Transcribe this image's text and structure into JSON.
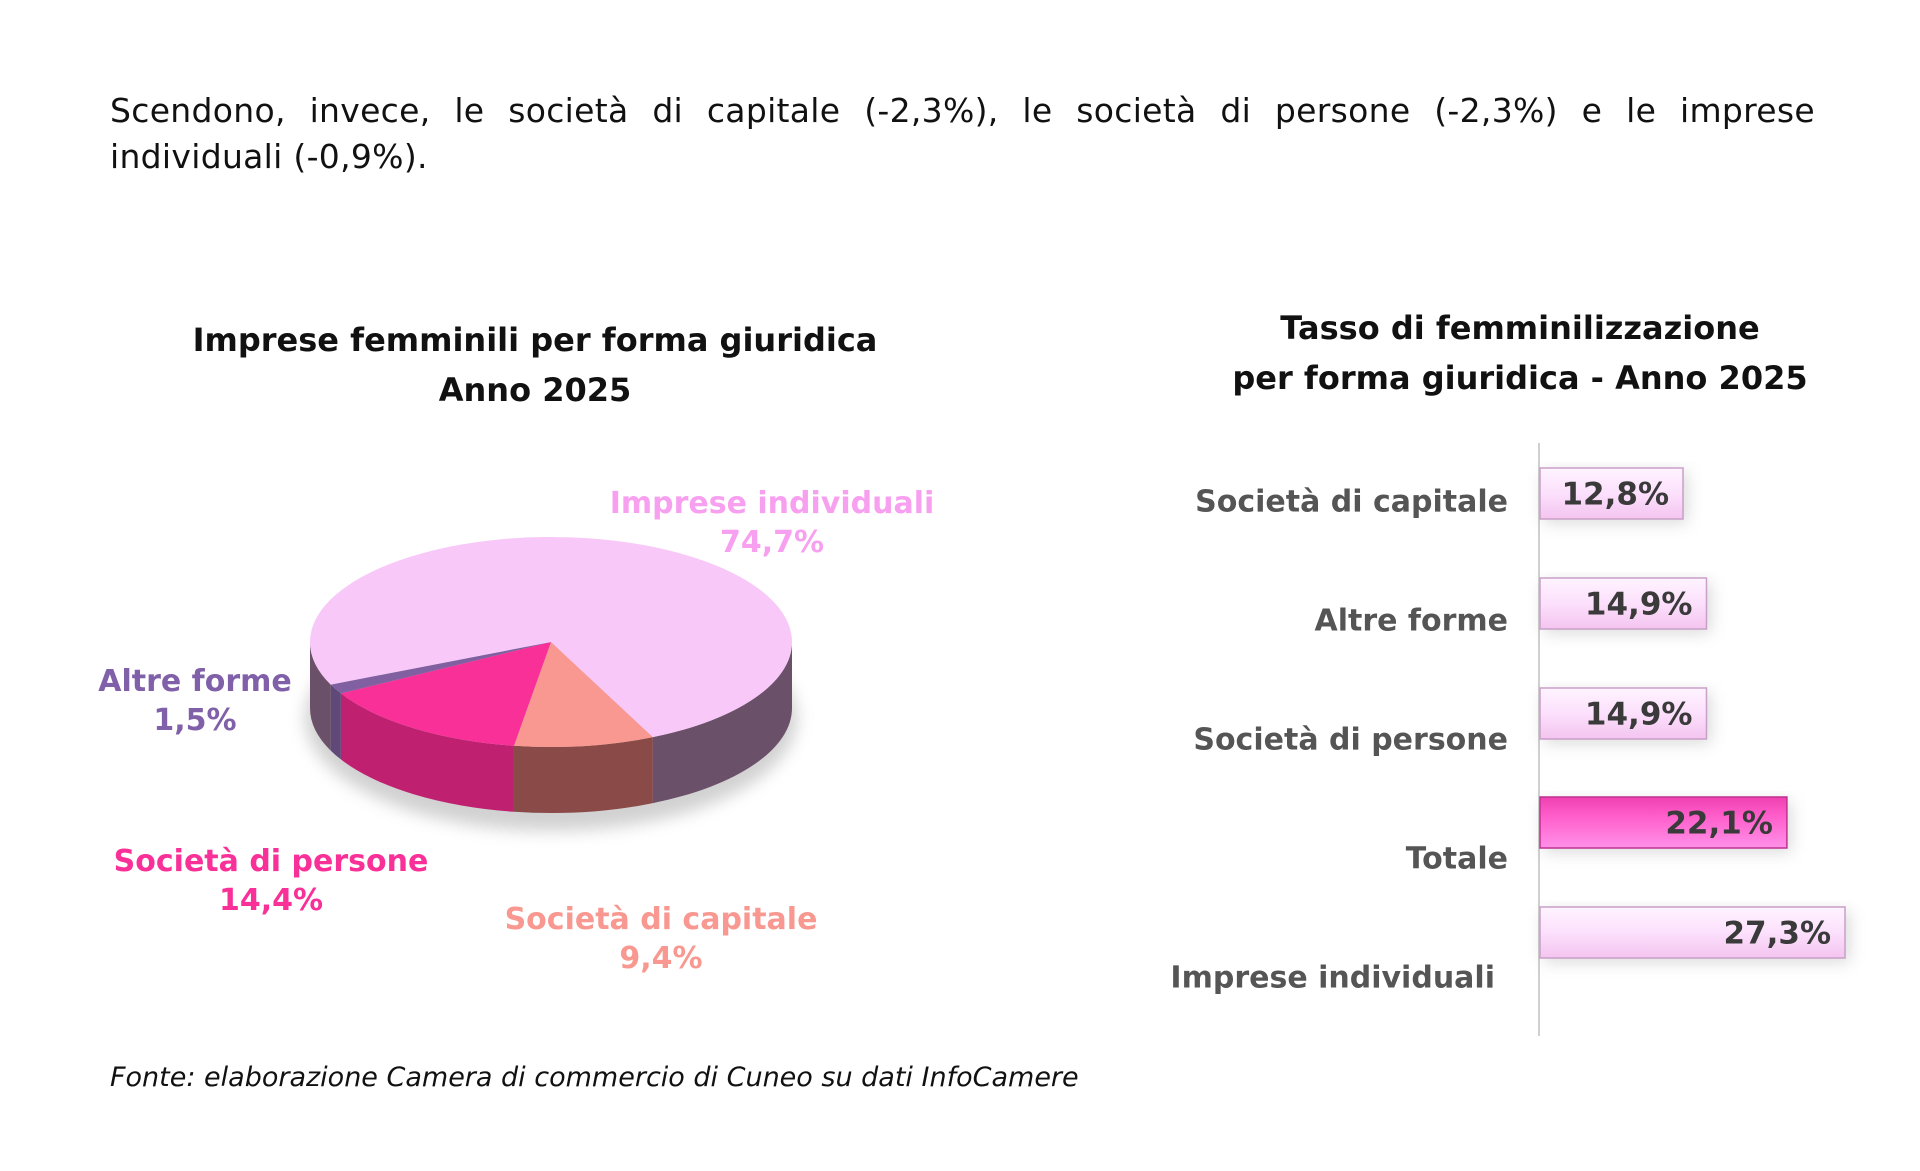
{
  "intro_text": "Scendono, invece, le società di capitale (-2,3%), le società di persone (-2,3%) e le imprese individuali (-0,9%).",
  "source": "Fonte: elaborazione Camera di commercio di Cuneo su dati InfoCamere",
  "chart_data": [
    {
      "type": "pie",
      "title": [
        "Imprese femminili per forma giuridica",
        "Anno 2025"
      ],
      "slices": [
        {
          "label": "Imprese individuali",
          "value": 74.7,
          "value_label": "74,7%",
          "color": "#f8c8f8",
          "side_color": "#6a5068"
        },
        {
          "label": "Società di capitale",
          "value": 9.4,
          "value_label": "9,4%",
          "color": "#f89890",
          "side_color": "#8a4a48"
        },
        {
          "label": "Società di persone",
          "value": 14.4,
          "value_label": "14,4%",
          "color": "#f83098",
          "side_color": "#c02070"
        },
        {
          "label": "Altre forme",
          "value": 1.5,
          "value_label": "1,5%",
          "color": "#8060a0",
          "side_color": "#604878"
        }
      ],
      "label_colors": {
        "Imprese individuali": "#f8a0f0",
        "Società di capitale": "#f89890",
        "Società di persone": "#f83098",
        "Altre forme": "#8060a8"
      }
    },
    {
      "type": "bar",
      "orientation": "horizontal",
      "title": [
        "Tasso di femminilizzazione",
        "per forma giuridica - Anno 2025"
      ],
      "categories": [
        "Società di capitale",
        "Altre forme",
        "Società di persone",
        "Totale",
        "Imprese individuali"
      ],
      "values": [
        12.8,
        14.9,
        14.9,
        22.1,
        27.3
      ],
      "value_labels": [
        "12,8%",
        "14,9%",
        "14,9%",
        "22,1%",
        "27,3%"
      ],
      "highlight": "Totale",
      "colors": {
        "normal": "#fce0fc",
        "highlight": "#ff70d8"
      },
      "xlim": [
        0,
        27.3
      ]
    }
  ]
}
